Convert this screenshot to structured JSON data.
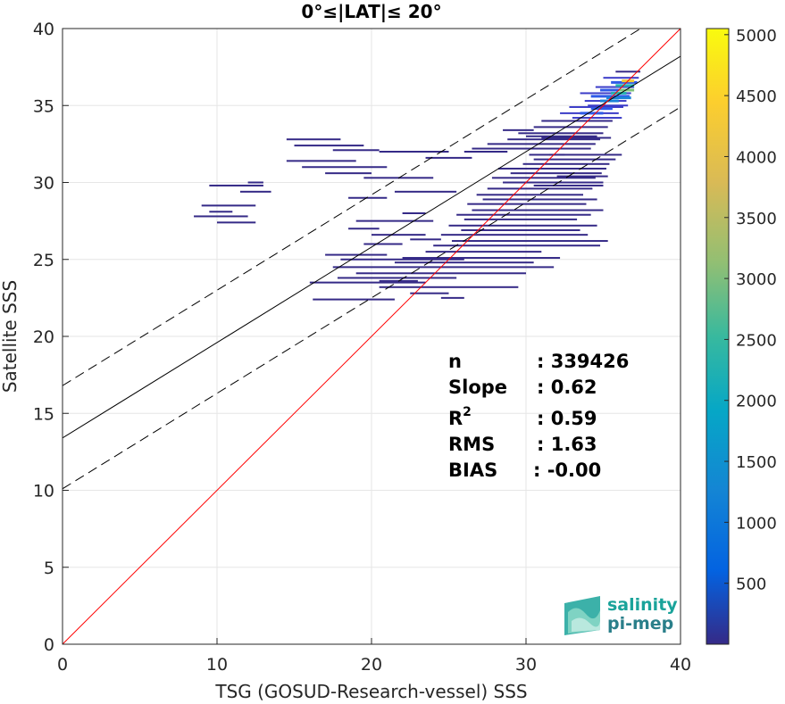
{
  "chart_data": {
    "type": "scatter",
    "title": "0°≤|LAT|≤ 20°",
    "xlabel": "TSG (GOSUD-Research-vessel) SSS",
    "ylabel": "Satellite SSS",
    "xlim": [
      0,
      40
    ],
    "ylim": [
      0,
      40
    ],
    "xticks": [
      "0",
      "10",
      "20",
      "30",
      "40"
    ],
    "yticks": [
      "0",
      "5",
      "10",
      "15",
      "20",
      "25",
      "30",
      "35",
      "40"
    ],
    "grid": true,
    "colorbar": {
      "ticks": [
        "500",
        "1000",
        "1500",
        "2000",
        "2500",
        "3000",
        "3500",
        "4000",
        "4500",
        "5000"
      ],
      "range": [
        0,
        5050
      ],
      "colormap": "parula"
    },
    "lines": {
      "identity": {
        "slope": 1,
        "intercept": 0,
        "color": "#ff0000"
      },
      "fit": {
        "slope": 0.62,
        "intercept": 13.4,
        "color": "#000000"
      },
      "fit_upper": {
        "slope": 0.62,
        "intercept": 16.8,
        "color": "#000000",
        "dash": true
      },
      "fit_lower": {
        "slope": 0.62,
        "intercept": 10.1,
        "color": "#000000",
        "dash": true
      }
    },
    "stats": {
      "labels": [
        "n",
        "Slope",
        "R",
        "RMS",
        "BIAS"
      ],
      "values": [
        ": 339426",
        ": 0.62",
        ": 0.59",
        ": 1.63",
        ": -0.00"
      ]
    },
    "density_segments": [
      [
        35.5,
        37.2,
        36.5,
        3
      ],
      [
        34.8,
        36.9,
        36.0,
        3
      ],
      [
        34.2,
        36.7,
        35.6,
        3
      ],
      [
        33.8,
        36.5,
        35.3,
        2
      ],
      [
        32.8,
        36.3,
        34.9,
        2
      ],
      [
        32.2,
        36.0,
        34.5,
        2
      ],
      [
        31.0,
        35.6,
        34.0,
        1
      ],
      [
        30.5,
        35.3,
        33.6,
        1
      ],
      [
        29.5,
        35.0,
        33.2,
        1
      ],
      [
        28.8,
        34.8,
        32.8,
        1
      ],
      [
        27.5,
        34.5,
        32.5,
        1
      ],
      [
        26.5,
        34.2,
        32.2,
        1
      ],
      [
        33.5,
        36.8,
        35.8,
        2
      ],
      [
        34.5,
        37.0,
        36.2,
        2
      ],
      [
        35.0,
        37.3,
        36.8,
        2
      ],
      [
        35.8,
        37.4,
        37.2,
        1
      ],
      [
        30.0,
        34.6,
        33.0,
        1
      ],
      [
        31.5,
        36.2,
        31.8,
        1
      ],
      [
        30.5,
        35.8,
        31.5,
        1
      ],
      [
        29.8,
        35.4,
        31.2,
        1
      ],
      [
        28.2,
        35.2,
        30.9,
        1
      ],
      [
        29.0,
        34.9,
        30.6,
        1
      ],
      [
        27.8,
        34.5,
        30.3,
        1
      ],
      [
        28.5,
        35.0,
        30.0,
        1
      ],
      [
        27.5,
        34.3,
        29.6,
        1
      ],
      [
        26.8,
        33.7,
        29.2,
        1
      ],
      [
        27.2,
        34.6,
        28.9,
        1
      ],
      [
        26.2,
        33.9,
        28.6,
        1
      ],
      [
        26.5,
        35.0,
        28.2,
        1
      ],
      [
        25.5,
        34.2,
        27.9,
        1
      ],
      [
        26.0,
        33.3,
        27.6,
        1
      ],
      [
        25.0,
        34.6,
        27.2,
        1
      ],
      [
        25.8,
        33.5,
        26.9,
        1
      ],
      [
        24.5,
        34.0,
        26.6,
        1
      ],
      [
        25.2,
        35.3,
        26.2,
        1
      ],
      [
        24.0,
        34.8,
        25.9,
        1
      ],
      [
        23.5,
        31.0,
        25.5,
        1
      ],
      [
        22.0,
        32.2,
        25.1,
        1
      ],
      [
        21.5,
        30.5,
        24.8,
        1
      ],
      [
        18.0,
        26.0,
        25.0,
        1
      ],
      [
        17.5,
        31.8,
        24.5,
        1
      ],
      [
        19.0,
        30.0,
        24.1,
        1
      ],
      [
        17.8,
        25.5,
        23.8,
        1
      ],
      [
        16.0,
        23.5,
        23.5,
        1
      ],
      [
        20.5,
        29.5,
        23.2,
        1
      ],
      [
        22.5,
        25.0,
        22.8,
        1
      ],
      [
        16.2,
        21.5,
        22.4,
        1
      ],
      [
        31.0,
        35.5,
        32.9,
        1
      ],
      [
        30.2,
        32.5,
        31.8,
        1
      ],
      [
        28.5,
        30.5,
        33.4,
        1
      ],
      [
        26.0,
        28.8,
        32.0,
        1
      ],
      [
        23.5,
        26.5,
        31.6,
        1
      ],
      [
        15.0,
        19.5,
        32.4,
        1
      ],
      [
        14.5,
        18.0,
        32.8,
        1
      ],
      [
        17.5,
        20.5,
        32.1,
        1
      ],
      [
        20.5,
        25.0,
        32.0,
        1
      ],
      [
        15.5,
        21.0,
        31.0,
        1
      ],
      [
        14.5,
        19.0,
        31.4,
        1
      ],
      [
        17.0,
        20.0,
        30.6,
        1
      ],
      [
        19.5,
        24.0,
        30.3,
        1
      ],
      [
        21.5,
        25.5,
        29.4,
        1
      ],
      [
        18.5,
        21.0,
        29.0,
        1
      ],
      [
        9.5,
        13.0,
        29.8,
        1
      ],
      [
        9.0,
        12.5,
        28.5,
        1
      ],
      [
        8.5,
        12.0,
        27.8,
        1
      ],
      [
        10.0,
        12.5,
        27.4,
        1
      ],
      [
        11.5,
        13.5,
        29.4,
        1
      ],
      [
        12.0,
        13.0,
        30.0,
        1
      ],
      [
        9.5,
        11.0,
        28.1,
        1
      ],
      [
        18.5,
        20.5,
        27.0,
        1
      ],
      [
        19.5,
        22.0,
        26.0,
        1
      ],
      [
        17.0,
        21.0,
        25.3,
        1
      ],
      [
        20.0,
        23.5,
        26.6,
        1
      ],
      [
        22.5,
        24.5,
        26.3,
        1
      ],
      [
        19.0,
        24.0,
        27.5,
        1
      ],
      [
        22.0,
        23.5,
        28.0,
        1
      ],
      [
        20.5,
        23.0,
        23.6,
        1
      ],
      [
        24.5,
        26.0,
        22.5,
        1
      ],
      [
        30.5,
        35.0,
        29.8,
        1
      ],
      [
        32.0,
        35.3,
        30.4,
        1
      ],
      [
        33.0,
        36.2,
        34.2,
        2
      ],
      [
        34.0,
        36.6,
        35.0,
        2
      ],
      [
        35.2,
        36.8,
        35.5,
        4
      ],
      [
        35.8,
        37.0,
        36.3,
        5
      ],
      [
        36.0,
        37.0,
        36.0,
        6
      ],
      [
        35.5,
        36.5,
        35.8,
        5
      ],
      [
        34.8,
        36.0,
        35.3,
        4
      ],
      [
        34.2,
        35.6,
        34.8,
        3
      ],
      [
        36.2,
        37.0,
        36.6,
        7
      ],
      [
        33.5,
        35.0,
        34.5,
        3
      ]
    ]
  },
  "logo": {
    "line1": "salinity",
    "line2": "pi-mep"
  },
  "colors": {
    "identity_line": "#ff0000",
    "fit_line": "#000000",
    "logo_accent": "#1aa39a"
  }
}
